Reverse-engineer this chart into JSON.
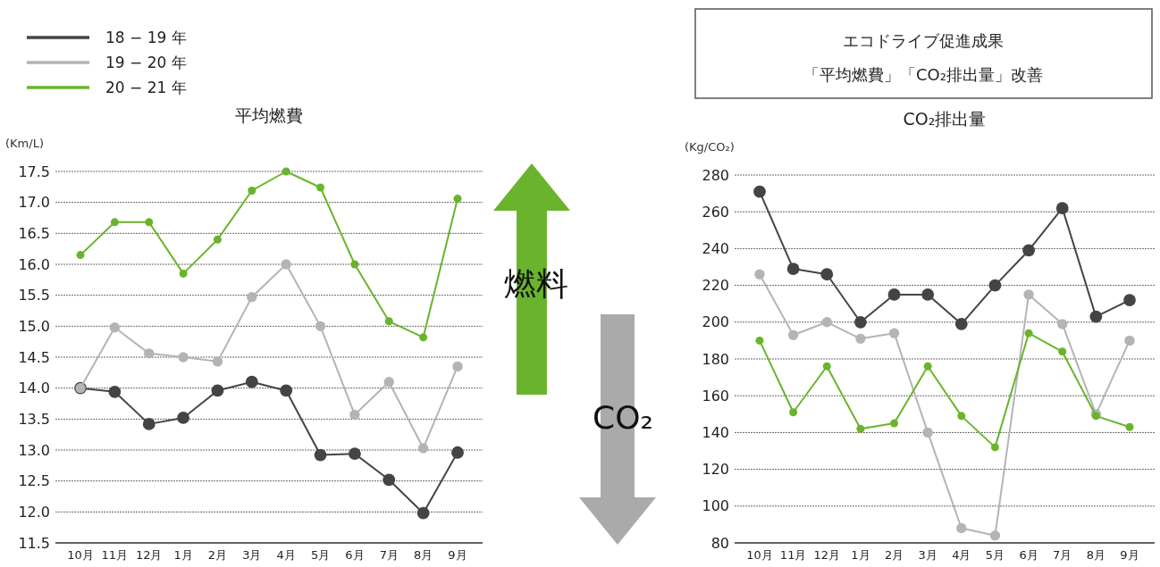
{
  "chart_data": [
    {
      "type": "line",
      "title": "平均燃費",
      "ylabel": "(Km/L)",
      "categories": [
        "10月",
        "11月",
        "12月",
        "1月",
        "2月",
        "3月",
        "4月",
        "5月",
        "6月",
        "7月",
        "8月",
        "9月"
      ],
      "series": [
        {
          "name": "18 − 19 年",
          "color": "#444444",
          "values": [
            14.0,
            13.94,
            13.42,
            13.52,
            13.96,
            14.1,
            13.96,
            12.92,
            12.94,
            12.52,
            11.98,
            12.96
          ]
        },
        {
          "name": "19 − 20 年",
          "color": "#b4b4b4",
          "values": [
            14.0,
            14.98,
            14.56,
            14.5,
            14.43,
            15.47,
            16.0,
            15.0,
            13.57,
            14.1,
            13.03,
            14.35
          ]
        },
        {
          "name": "20 − 21 年",
          "color": "#6ab42d",
          "values": [
            16.15,
            16.68,
            16.68,
            15.85,
            16.4,
            17.19,
            17.5,
            17.24,
            16.0,
            15.08,
            14.82,
            17.06
          ]
        }
      ],
      "ylim": [
        11.5,
        17.5
      ],
      "yticks": [
        11.5,
        {
          "value": 12,
          "label": "12.0"
        },
        12.5,
        {
          "value": 13,
          "label": "13.0"
        },
        13.5,
        {
          "value": 14,
          "label": "14.0"
        },
        14.5,
        {
          "value": 15,
          "label": "15.0"
        },
        15.5,
        {
          "value": 16,
          "label": "16.0"
        },
        16.5,
        {
          "value": 17,
          "label": "17.0"
        },
        17.5
      ],
      "grid": "y",
      "legend": "top left",
      "marker": "circle",
      "line_style": "solid",
      "annotations": [
        "燃料",
        "CO₂"
      ]
    },
    {
      "type": "line",
      "title": "CO₂排出量",
      "ylabel": "(Kg/CO₂)",
      "categories": [
        "10月",
        "11月",
        "12月",
        "1月",
        "2月",
        "3月",
        "4月",
        "5月",
        "6月",
        "7月",
        "8月",
        "9月"
      ],
      "series": [
        {
          "color": "#444444",
          "values": [
            271,
            229,
            226,
            200,
            215,
            215,
            199,
            220,
            239,
            262,
            203,
            212
          ]
        },
        {
          "color": "#b4b4b4",
          "values": [
            226,
            193,
            200,
            191,
            194,
            140,
            88,
            84,
            215,
            199,
            150,
            190
          ]
        },
        {
          "color": "#6ab42d",
          "values": [
            190,
            151,
            176,
            142,
            145,
            176,
            149,
            132,
            194,
            184,
            149,
            143
          ]
        }
      ],
      "ylim": [
        80,
        280
      ],
      "yticks": [
        80,
        100,
        120,
        140,
        160,
        180,
        200,
        220,
        240,
        260,
        280
      ],
      "grid": "y",
      "marker": "circle",
      "line_style": "solid",
      "annotations": [
        "エコドライブ促進成果",
        "「平均燃費」「CO₂排出量」改善"
      ]
    }
  ]
}
